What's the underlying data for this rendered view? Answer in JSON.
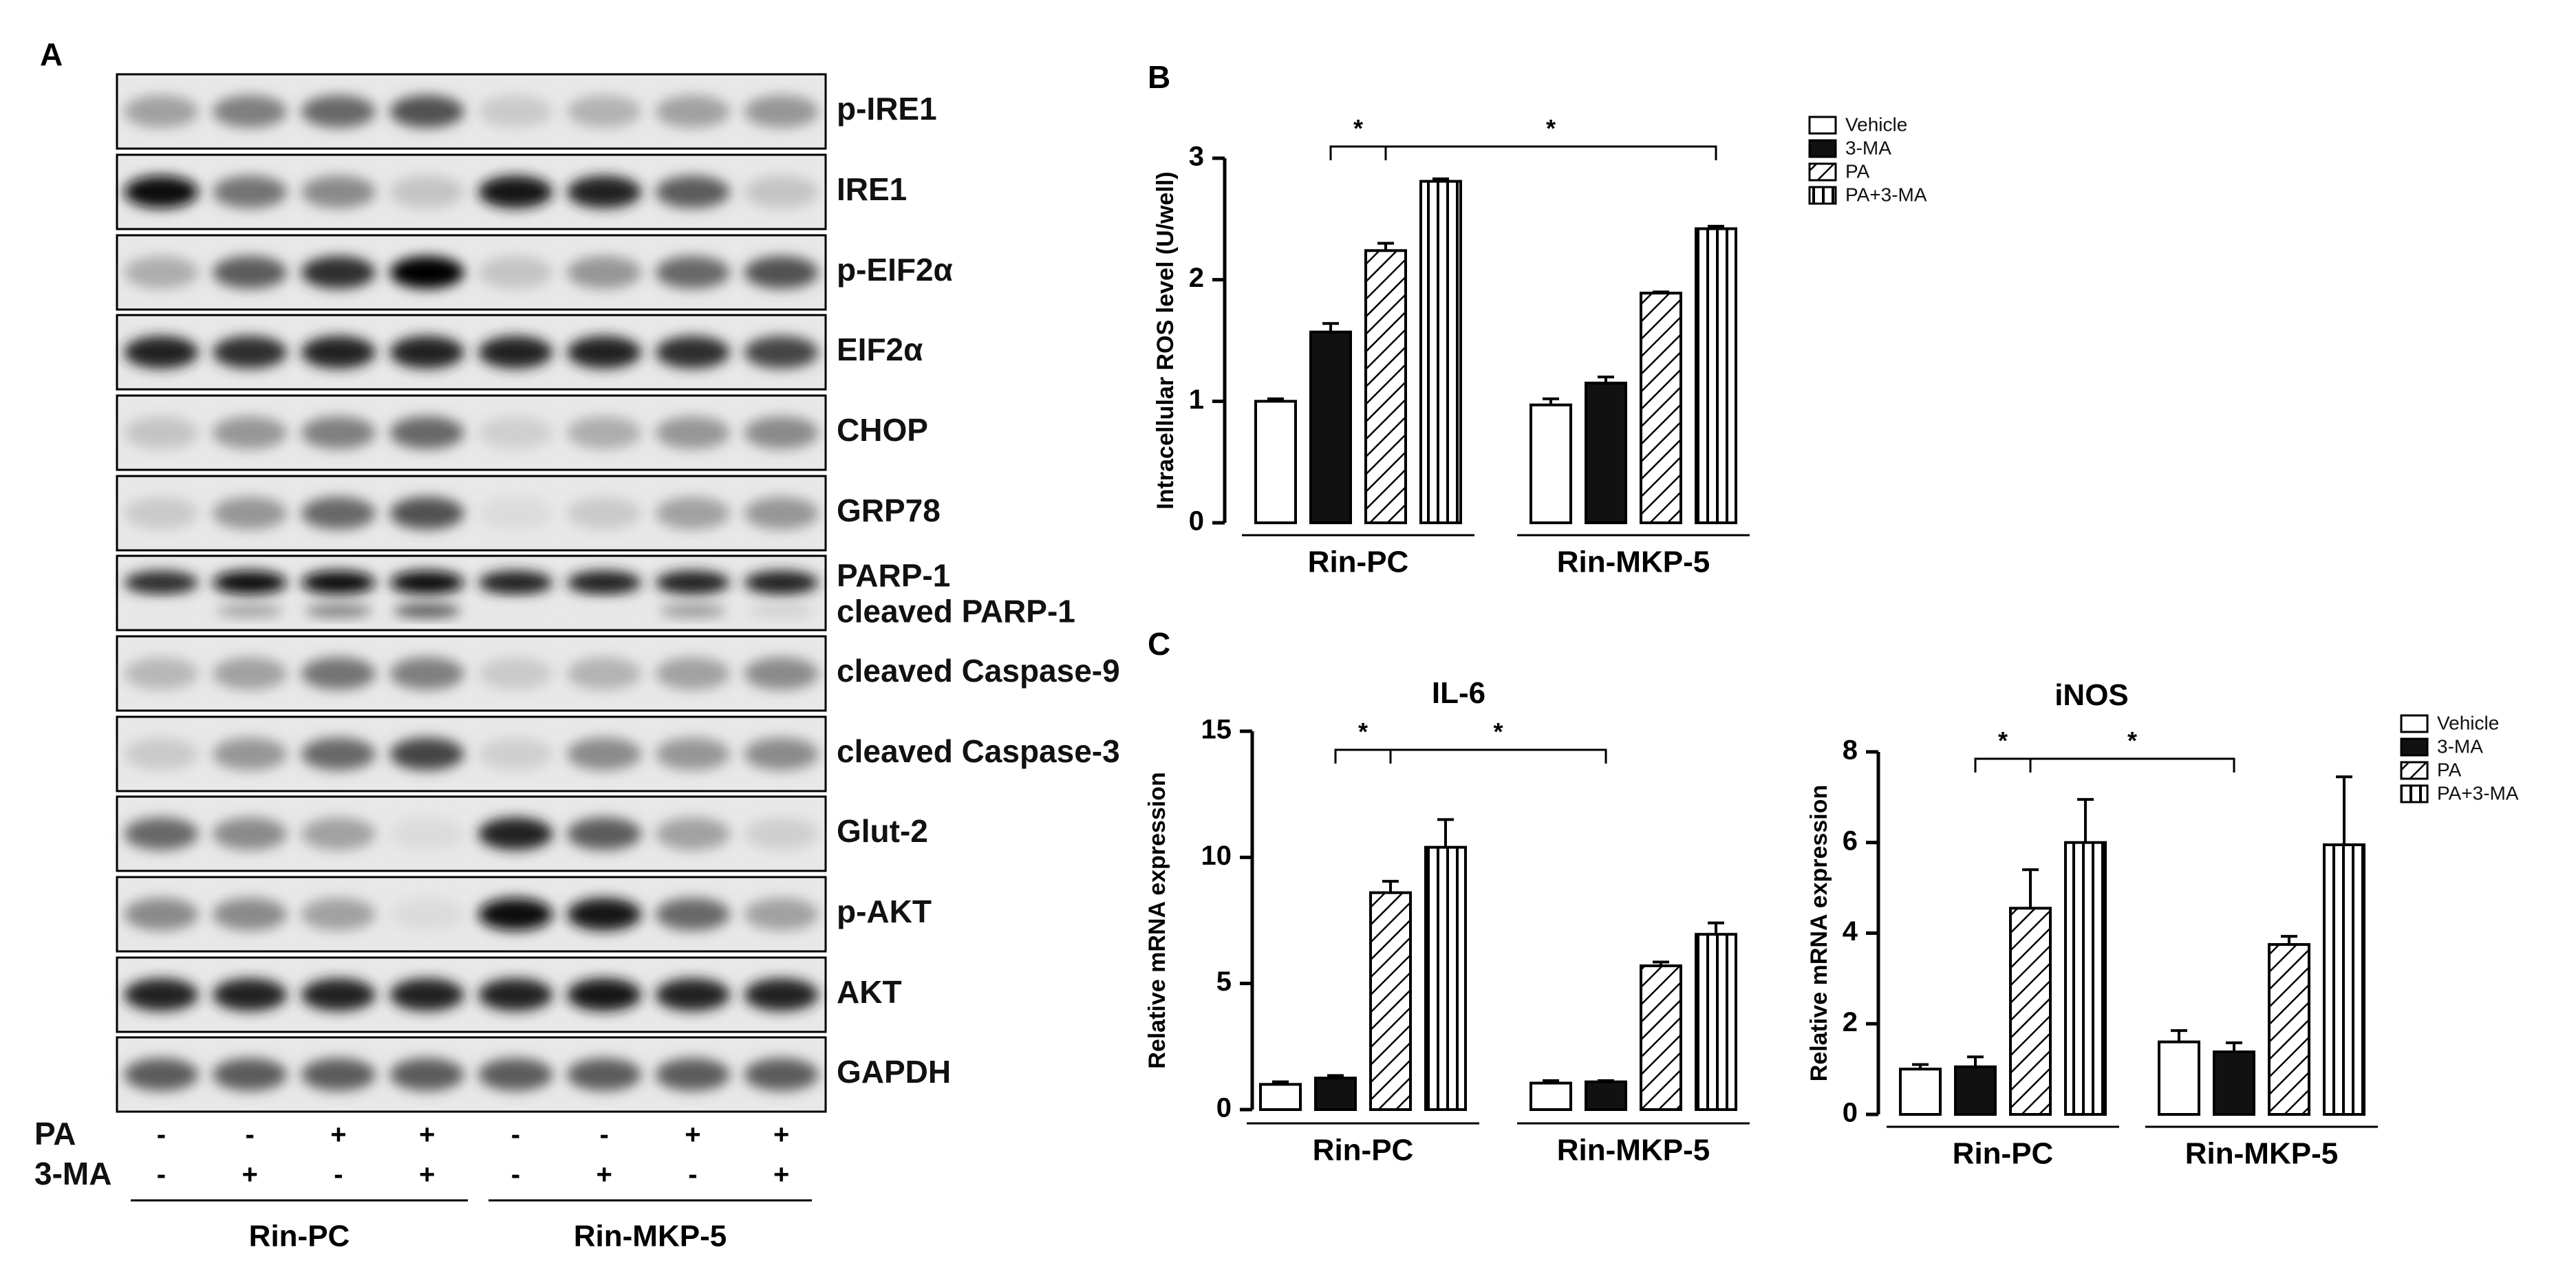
{
  "panels": {
    "a": "A",
    "b": "B",
    "c": "C"
  },
  "blot": {
    "rows": [
      {
        "label": "p-IRE1",
        "intensity": [
          0.3,
          0.45,
          0.55,
          0.65,
          0.12,
          0.22,
          0.3,
          0.35
        ]
      },
      {
        "label": "IRE1",
        "intensity": [
          0.95,
          0.5,
          0.4,
          0.15,
          0.9,
          0.85,
          0.6,
          0.15
        ]
      },
      {
        "label": "p-EIF2α",
        "intensity": [
          0.25,
          0.6,
          0.8,
          1.0,
          0.15,
          0.35,
          0.55,
          0.65
        ]
      },
      {
        "label": "EIF2α",
        "intensity": [
          0.85,
          0.8,
          0.85,
          0.85,
          0.85,
          0.85,
          0.8,
          0.7
        ]
      },
      {
        "label": "CHOP",
        "intensity": [
          0.15,
          0.35,
          0.45,
          0.55,
          0.1,
          0.25,
          0.35,
          0.4
        ]
      },
      {
        "label": "GRP78",
        "intensity": [
          0.12,
          0.35,
          0.55,
          0.65,
          0.05,
          0.12,
          0.3,
          0.35
        ]
      },
      {
        "label": "PARP-1",
        "label2": "cleaved PARP-1",
        "intensity": [
          0.8,
          0.95,
          0.95,
          0.95,
          0.85,
          0.85,
          0.85,
          0.85
        ],
        "intensity2": [
          0.0,
          0.3,
          0.45,
          0.65,
          0.0,
          0.0,
          0.35,
          0.1
        ]
      },
      {
        "label": "cleaved  Caspase-9",
        "intensity": [
          0.2,
          0.3,
          0.5,
          0.45,
          0.12,
          0.22,
          0.3,
          0.4
        ]
      },
      {
        "label": "cleaved  Caspase-3",
        "intensity": [
          0.12,
          0.35,
          0.55,
          0.7,
          0.1,
          0.4,
          0.35,
          0.4
        ]
      },
      {
        "label": "Glut-2",
        "intensity": [
          0.55,
          0.4,
          0.3,
          0.05,
          0.85,
          0.6,
          0.3,
          0.1
        ]
      },
      {
        "label": "p-AKT",
        "intensity": [
          0.4,
          0.4,
          0.3,
          0.05,
          0.95,
          0.9,
          0.55,
          0.3
        ]
      },
      {
        "label": "AKT",
        "intensity": [
          0.85,
          0.85,
          0.85,
          0.85,
          0.85,
          0.9,
          0.85,
          0.85
        ]
      },
      {
        "label": "GAPDH",
        "intensity": [
          0.6,
          0.6,
          0.6,
          0.6,
          0.6,
          0.6,
          0.6,
          0.6
        ]
      }
    ],
    "treatments": [
      {
        "label": "PA",
        "signs": [
          "-",
          "-",
          "+",
          "+",
          "-",
          "-",
          "+",
          "+"
        ]
      },
      {
        "label": "3-MA",
        "signs": [
          "-",
          "+",
          "-",
          "+",
          "-",
          "+",
          "-",
          "+"
        ]
      }
    ],
    "groups": [
      "Rin-PC",
      "Rin-MKP-5"
    ]
  },
  "chart_data": [
    {
      "type": "bar",
      "panel": "B",
      "title": "",
      "ylabel": "Intracellular  ROS level (U/well)",
      "categories": [
        "Rin-PC",
        "Rin-MKP-5"
      ],
      "ylim": [
        0,
        3
      ],
      "yticks": [
        "0",
        "1",
        "2",
        "3"
      ],
      "series": [
        {
          "name": "Vehicle",
          "values": [
            1.0,
            0.97
          ],
          "errors": [
            0.02,
            0.05
          ]
        },
        {
          "name": "3-MA",
          "values": [
            1.57,
            1.15
          ],
          "errors": [
            0.07,
            0.05
          ]
        },
        {
          "name": "PA",
          "values": [
            2.24,
            1.89
          ],
          "errors": [
            0.06,
            0.01
          ]
        },
        {
          "name": "PA+3-MA",
          "values": [
            2.81,
            2.42
          ],
          "errors": [
            0.02,
            0.02
          ]
        }
      ],
      "legend": "top-right",
      "annotations": [
        "*",
        "*"
      ]
    },
    {
      "type": "bar",
      "panel": "C",
      "title": "IL-6",
      "ylabel": "Relative mRNA expression",
      "categories": [
        "Rin-PC",
        "Rin-MKP-5"
      ],
      "ylim": [
        0,
        15
      ],
      "yticks": [
        "0",
        "5",
        "10",
        "15"
      ],
      "series": [
        {
          "name": "Vehicle",
          "values": [
            1.0,
            1.05
          ],
          "errors": [
            0.1,
            0.1
          ]
        },
        {
          "name": "3-MA",
          "values": [
            1.25,
            1.1
          ],
          "errors": [
            0.1,
            0.05
          ]
        },
        {
          "name": "PA",
          "values": [
            8.6,
            5.7
          ],
          "errors": [
            0.45,
            0.15
          ]
        },
        {
          "name": "PA+3-MA",
          "values": [
            10.4,
            6.95
          ],
          "errors": [
            1.1,
            0.45
          ]
        }
      ],
      "annotations": [
        "*",
        "*"
      ]
    },
    {
      "type": "bar",
      "panel": "C",
      "title": "iNOS",
      "ylabel": "Relative mRNA expression",
      "categories": [
        "Rin-PC",
        "Rin-MKP-5"
      ],
      "ylim": [
        0,
        8
      ],
      "yticks": [
        "0",
        "2",
        "4",
        "6",
        "8"
      ],
      "series": [
        {
          "name": "Vehicle",
          "values": [
            1.0,
            1.6
          ],
          "errors": [
            0.1,
            0.25
          ]
        },
        {
          "name": "3-MA",
          "values": [
            1.05,
            1.38
          ],
          "errors": [
            0.22,
            0.2
          ]
        },
        {
          "name": "PA",
          "values": [
            4.55,
            3.75
          ],
          "errors": [
            0.85,
            0.18
          ]
        },
        {
          "name": "PA+3-MA",
          "values": [
            6.0,
            5.95
          ],
          "errors": [
            0.95,
            1.5
          ]
        }
      ],
      "legend": "top-right",
      "annotations": [
        "*",
        "*"
      ]
    }
  ]
}
